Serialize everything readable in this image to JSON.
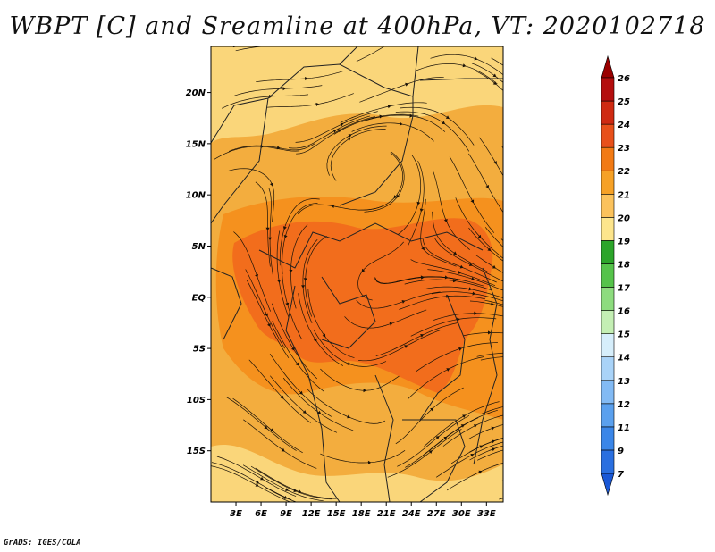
{
  "title": "WBPT [C] and Sreamline at 400hPa, VT: 2020102718",
  "credit": "GrADS: IGES/COLA",
  "map": {
    "lat_labels": [
      "20N",
      "15N",
      "10N",
      "5N",
      "EQ",
      "5S",
      "10S",
      "15S"
    ],
    "lat_values": [
      20,
      15,
      10,
      5,
      0,
      -5,
      -10,
      -15
    ],
    "lon_labels": [
      "3E",
      "6E",
      "9E",
      "12E",
      "15E",
      "18E",
      "21E",
      "24E",
      "27E",
      "30E",
      "33E"
    ],
    "lon_values": [
      3,
      6,
      9,
      12,
      15,
      18,
      21,
      24,
      27,
      30,
      33
    ],
    "lon_range": [
      0,
      35
    ],
    "lat_range": [
      -20,
      24.5
    ],
    "base_color": "#f3ad3e",
    "warm_core_color": "#f26d1c",
    "mid_color": "#f5911e",
    "cool_color": "#fad67a"
  },
  "colorbar": {
    "labels": [
      "7",
      "9",
      "11",
      "12",
      "13",
      "14",
      "15",
      "16",
      "17",
      "18",
      "19",
      "20",
      "21",
      "22",
      "23",
      "24",
      "25",
      "26"
    ],
    "colors": [
      "#1a58d6",
      "#2a6fe0",
      "#3a86e8",
      "#5aa0ee",
      "#82baf4",
      "#a9d3f8",
      "#d6eefb",
      "#c4efb4",
      "#8ddc7e",
      "#55c34a",
      "#2ca52a",
      "#fde58c",
      "#fbc25c",
      "#f6a126",
      "#f27a14",
      "#e8501a",
      "#cf2a12",
      "#b40e0e",
      "#9a0000"
    ]
  }
}
